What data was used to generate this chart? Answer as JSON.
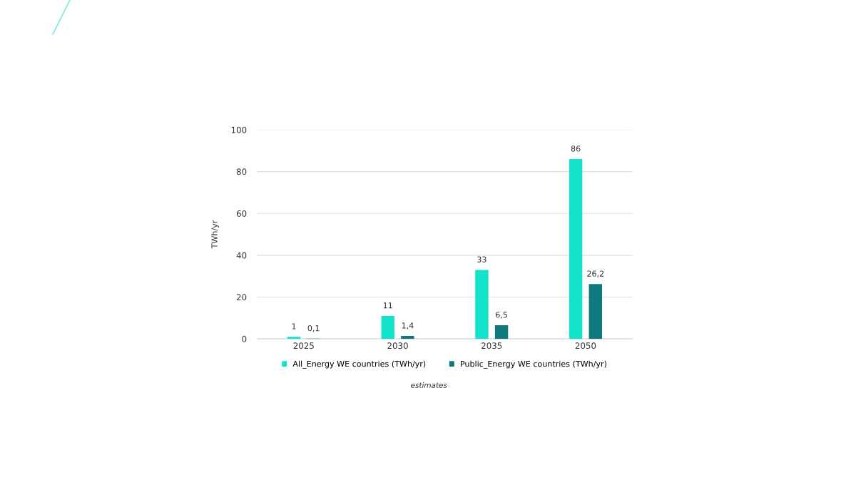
{
  "chart_data": {
    "type": "bar",
    "ylabel": "TWh/yr",
    "categories": [
      "2025",
      "2030",
      "2035",
      "2050"
    ],
    "series": [
      {
        "name": "All_Energy WE countries (TWh/yr)",
        "color": "#14e3cc",
        "values": [
          1,
          11,
          33,
          86
        ],
        "value_labels": [
          "1",
          "11",
          "33",
          "86"
        ]
      },
      {
        "name": "Public_Energy WE countries (TWh/yr)",
        "color": "#10797e",
        "values": [
          0.1,
          1.4,
          6.5,
          26.2
        ],
        "value_labels": [
          "0,1",
          "1,4",
          "6,5",
          "26,2"
        ]
      }
    ],
    "ylim": [
      0,
      100
    ],
    "yticks": [
      0,
      20,
      40,
      60,
      80,
      100
    ],
    "grid": "y",
    "legend": "bottom",
    "annotations": [
      "estimates"
    ]
  }
}
